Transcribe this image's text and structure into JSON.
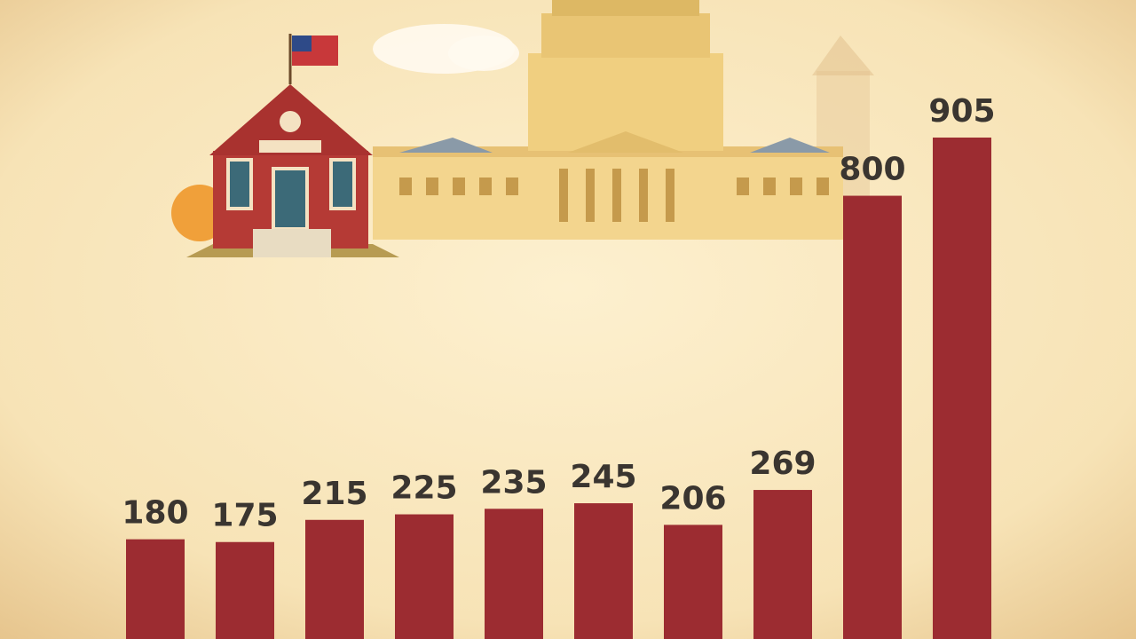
{
  "chart_data": {
    "type": "bar",
    "values": [
      180,
      175,
      215,
      225,
      235,
      245,
      206,
      269,
      800,
      905
    ],
    "color": "#9c2c31"
  }
}
